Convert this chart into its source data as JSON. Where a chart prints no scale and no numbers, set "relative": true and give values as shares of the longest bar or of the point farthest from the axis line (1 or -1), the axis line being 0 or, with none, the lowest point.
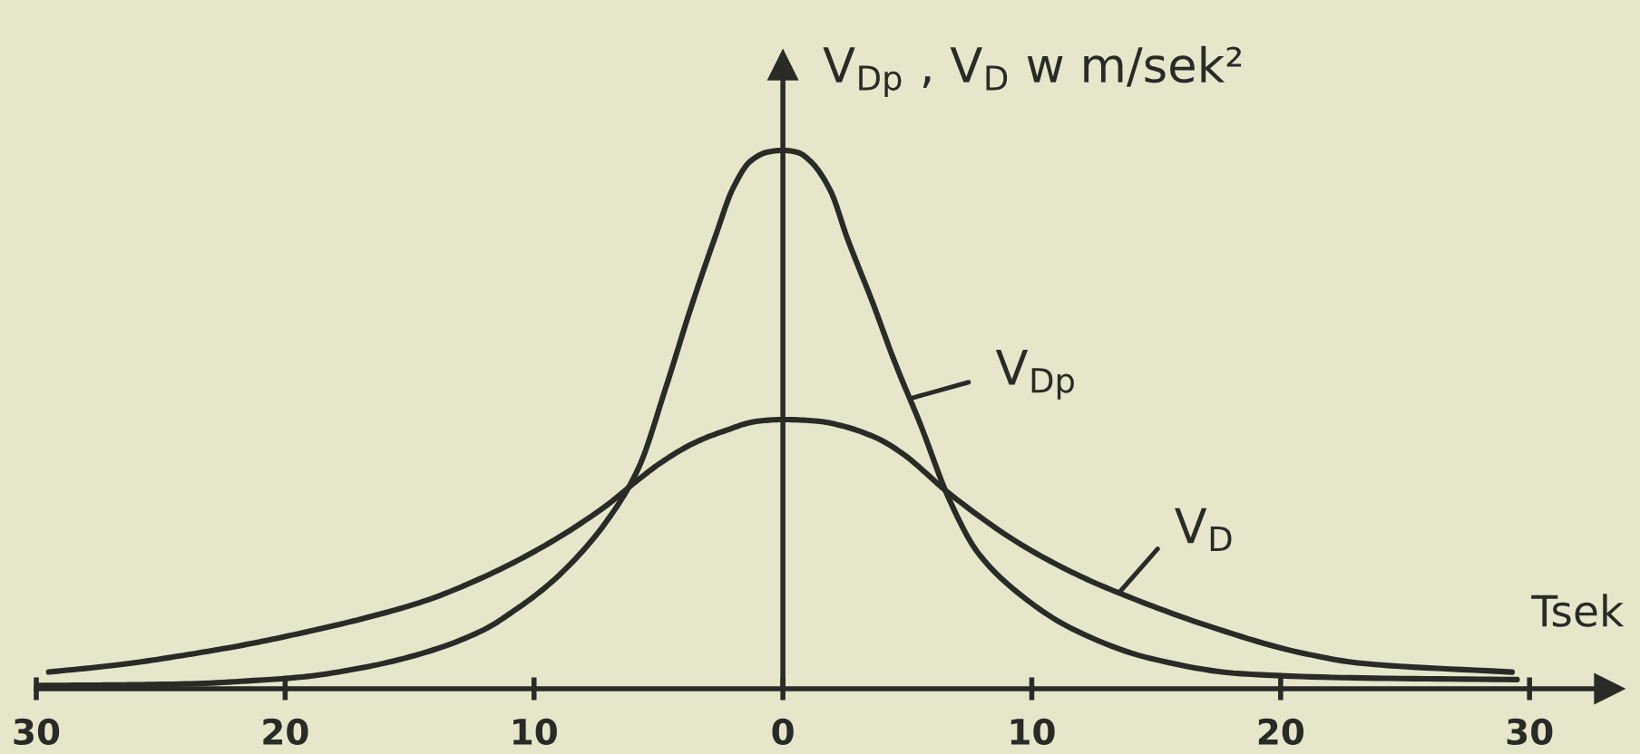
{
  "chart_data": {
    "type": "line",
    "relative": true,
    "xlabel": "Tsek",
    "ylabel": "V$_{Dp}$ , V$_{D}$ w m/sek²",
    "tick_labels": "x",
    "xlim": [
      -30,
      33.2
    ],
    "xticks": [
      {
        "value": -30,
        "label": "30"
      },
      {
        "value": -20,
        "label": "20"
      },
      {
        "value": -10,
        "label": "10"
      },
      0,
      10,
      20,
      30
    ],
    "series": [
      {
        "name": "V$_{Dp}$",
        "color": "#2a2a27",
        "x": [
          -30,
          -27,
          -24,
          -21,
          -19.3,
          -16.9,
          -14.4,
          -12,
          -10.8,
          -9.5,
          -8.3,
          -7.1,
          -5.8,
          -4.7,
          -3.7,
          -2.7,
          -2,
          -1.3,
          -0.6,
          0,
          0.6,
          1.1,
          1.9,
          2.6,
          3.6,
          4.5,
          5.5,
          6.7,
          7.8,
          9.4,
          11.6,
          14.8,
          18.4,
          23.3,
          29.5
        ],
        "values": [
          0.006,
          0.007,
          0.009,
          0.016,
          0.022,
          0.039,
          0.067,
          0.11,
          0.145,
          0.19,
          0.243,
          0.31,
          0.41,
          0.56,
          0.707,
          0.842,
          0.93,
          0.98,
          0.997,
          1,
          0.996,
          0.98,
          0.926,
          0.835,
          0.718,
          0.606,
          0.494,
          0.35,
          0.255,
          0.18,
          0.112,
          0.056,
          0.028,
          0.02,
          0.017
        ]
      },
      {
        "name": "V$_{D}$",
        "color": "#2a2a27",
        "x": [
          -29.5,
          -26.6,
          -24.1,
          -21.7,
          -19.3,
          -16.9,
          -14.4,
          -12,
          -9.6,
          -7.1,
          -5.9,
          -4.9,
          -3.5,
          -2.4,
          -1,
          0,
          1.4,
          2.4,
          3.8,
          4.8,
          6.7,
          9.6,
          12,
          13.5,
          17.2,
          20.8,
          23.3,
          29.3
        ],
        "values": [
          0.031,
          0.045,
          0.062,
          0.081,
          0.104,
          0.13,
          0.163,
          0.208,
          0.265,
          0.34,
          0.385,
          0.42,
          0.458,
          0.478,
          0.497,
          0.5,
          0.497,
          0.488,
          0.465,
          0.437,
          0.362,
          0.267,
          0.208,
          0.178,
          0.115,
          0.067,
          0.047,
          0.031
        ]
      }
    ]
  }
}
